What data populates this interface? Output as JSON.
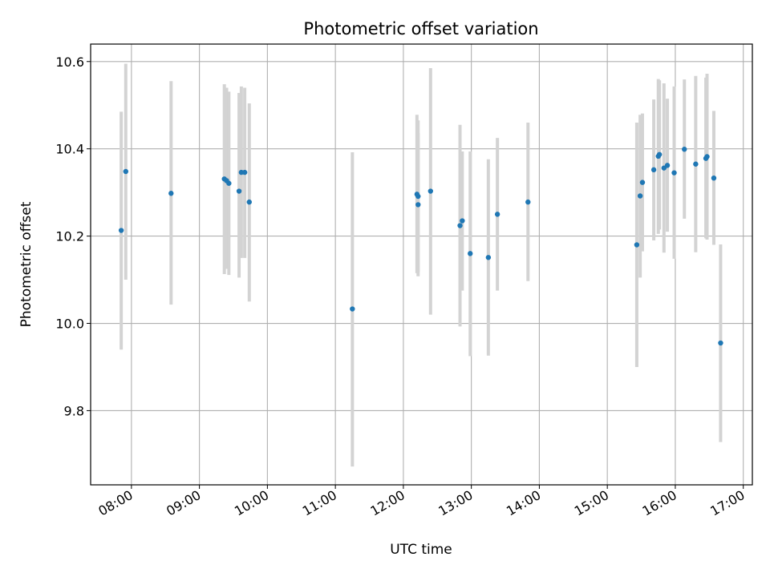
{
  "chart_data": {
    "type": "scatter",
    "title": "Photometric offset variation",
    "xlabel": "UTC time",
    "ylabel": "Photometric offset",
    "x_ticks": [
      "08:00",
      "09:00",
      "10:00",
      "11:00",
      "12:00",
      "13:00",
      "14:00",
      "15:00",
      "16:00",
      "17:00"
    ],
    "y_ticks": [
      "9.8",
      "10.0",
      "10.2",
      "10.4",
      "10.6"
    ],
    "xlim": [
      "07:24",
      "17:08"
    ],
    "ylim": [
      9.63,
      10.64
    ],
    "grid": true,
    "colors": {
      "points": "#1f77b4",
      "errorbars": "#d3d3d3",
      "grid": "#b0b0b0"
    },
    "points": [
      {
        "t": "07:51",
        "y": 10.213,
        "lo": 9.94,
        "hi": 10.485
      },
      {
        "t": "07:55",
        "y": 10.348,
        "lo": 10.1,
        "hi": 10.595
      },
      {
        "t": "08:35",
        "y": 10.298,
        "lo": 10.043,
        "hi": 10.555
      },
      {
        "t": "09:22",
        "y": 10.331,
        "lo": 10.113,
        "hi": 10.548
      },
      {
        "t": "09:24",
        "y": 10.327,
        "lo": 10.125,
        "hi": 10.54
      },
      {
        "t": "09:26",
        "y": 10.321,
        "lo": 10.111,
        "hi": 10.531
      },
      {
        "t": "09:35",
        "y": 10.303,
        "lo": 10.105,
        "hi": 10.528
      },
      {
        "t": "09:37",
        "y": 10.346,
        "lo": 10.15,
        "hi": 10.543
      },
      {
        "t": "09:40",
        "y": 10.346,
        "lo": 10.15,
        "hi": 10.54
      },
      {
        "t": "09:44",
        "y": 10.278,
        "lo": 10.05,
        "hi": 10.504
      },
      {
        "t": "11:15",
        "y": 10.033,
        "lo": 9.672,
        "hi": 10.392
      },
      {
        "t": "12:12",
        "y": 10.296,
        "lo": 10.115,
        "hi": 10.478
      },
      {
        "t": "12:13",
        "y": 10.291,
        "lo": 10.117,
        "hi": 10.465
      },
      {
        "t": "12:13",
        "y": 10.272,
        "lo": 10.108,
        "hi": 10.436
      },
      {
        "t": "12:24",
        "y": 10.303,
        "lo": 10.02,
        "hi": 10.585
      },
      {
        "t": "12:50",
        "y": 10.224,
        "lo": 9.993,
        "hi": 10.455
      },
      {
        "t": "12:52",
        "y": 10.235,
        "lo": 10.075,
        "hi": 10.394
      },
      {
        "t": "12:59",
        "y": 10.16,
        "lo": 9.925,
        "hi": 10.394
      },
      {
        "t": "13:15",
        "y": 10.151,
        "lo": 9.926,
        "hi": 10.376
      },
      {
        "t": "13:23",
        "y": 10.25,
        "lo": 10.075,
        "hi": 10.425
      },
      {
        "t": "13:50",
        "y": 10.278,
        "lo": 10.097,
        "hi": 10.46
      },
      {
        "t": "15:26",
        "y": 10.18,
        "lo": 9.9,
        "hi": 10.46
      },
      {
        "t": "15:29",
        "y": 10.292,
        "lo": 10.105,
        "hi": 10.478
      },
      {
        "t": "15:31",
        "y": 10.323,
        "lo": 10.165,
        "hi": 10.481
      },
      {
        "t": "15:41",
        "y": 10.352,
        "lo": 10.19,
        "hi": 10.513
      },
      {
        "t": "15:45",
        "y": 10.383,
        "lo": 10.205,
        "hi": 10.56
      },
      {
        "t": "15:46",
        "y": 10.387,
        "lo": 10.215,
        "hi": 10.557
      },
      {
        "t": "15:50",
        "y": 10.356,
        "lo": 10.162,
        "hi": 10.55
      },
      {
        "t": "15:53",
        "y": 10.362,
        "lo": 10.21,
        "hi": 10.515
      },
      {
        "t": "15:59",
        "y": 10.345,
        "lo": 10.148,
        "hi": 10.543
      },
      {
        "t": "16:08",
        "y": 10.399,
        "lo": 10.24,
        "hi": 10.559
      },
      {
        "t": "16:18",
        "y": 10.365,
        "lo": 10.163,
        "hi": 10.567
      },
      {
        "t": "16:27",
        "y": 10.378,
        "lo": 10.195,
        "hi": 10.563
      },
      {
        "t": "16:28",
        "y": 10.382,
        "lo": 10.192,
        "hi": 10.572
      },
      {
        "t": "16:34",
        "y": 10.333,
        "lo": 10.18,
        "hi": 10.487
      },
      {
        "t": "16:40",
        "y": 9.955,
        "lo": 9.728,
        "hi": 10.181
      }
    ]
  }
}
